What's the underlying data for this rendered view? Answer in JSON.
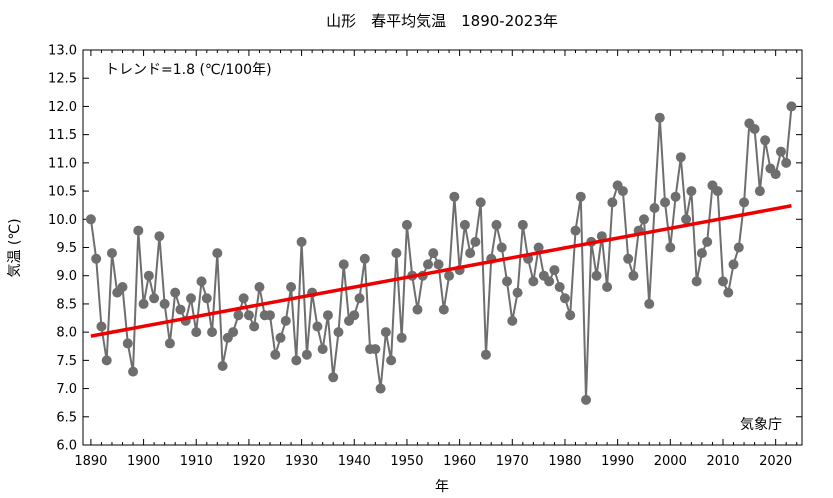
{
  "chart_data": {
    "type": "line",
    "title": "山形　春平均気温　1890-2023年",
    "xlabel": "年",
    "ylabel": "気温 (℃)",
    "trend_label": "トレンド=1.8 (℃/100年)",
    "source_label": "気象庁",
    "xlim": [
      1888.5,
      2025
    ],
    "ylim": [
      6.0,
      13.0
    ],
    "x_ticks": [
      1890,
      1900,
      1910,
      1920,
      1930,
      1940,
      1950,
      1960,
      1970,
      1980,
      1990,
      2000,
      2010,
      2020
    ],
    "y_ticks": [
      "6.0",
      "6.5",
      "7.0",
      "7.5",
      "8.0",
      "8.5",
      "9.0",
      "9.5",
      "10.0",
      "10.5",
      "11.0",
      "11.5",
      "12.0",
      "12.5",
      "13.0"
    ],
    "grid": false,
    "series": [
      {
        "color": "#6e6e6e",
        "x": [
          1890,
          1891,
          1892,
          1893,
          1894,
          1895,
          1896,
          1897,
          1898,
          1899,
          1900,
          1901,
          1902,
          1903,
          1904,
          1905,
          1906,
          1907,
          1908,
          1909,
          1910,
          1911,
          1912,
          1913,
          1914,
          1915,
          1916,
          1917,
          1918,
          1919,
          1920,
          1921,
          1922,
          1923,
          1924,
          1925,
          1926,
          1927,
          1928,
          1929,
          1930,
          1931,
          1932,
          1933,
          1934,
          1935,
          1936,
          1937,
          1938,
          1939,
          1940,
          1941,
          1942,
          1943,
          1944,
          1945,
          1946,
          1947,
          1948,
          1949,
          1950,
          1951,
          1952,
          1953,
          1954,
          1955,
          1956,
          1957,
          1958,
          1959,
          1960,
          1961,
          1962,
          1963,
          1964,
          1965,
          1966,
          1967,
          1968,
          1969,
          1970,
          1971,
          1972,
          1973,
          1974,
          1975,
          1976,
          1977,
          1978,
          1979,
          1980,
          1981,
          1982,
          1983,
          1984,
          1985,
          1986,
          1987,
          1988,
          1989,
          1990,
          1991,
          1992,
          1993,
          1994,
          1995,
          1996,
          1997,
          1998,
          1999,
          2000,
          2001,
          2002,
          2003,
          2004,
          2005,
          2006,
          2007,
          2008,
          2009,
          2010,
          2011,
          2012,
          2013,
          2014,
          2015,
          2016,
          2017,
          2018,
          2019,
          2020,
          2021,
          2022,
          2023
        ],
        "values": [
          10.0,
          9.3,
          8.1,
          7.5,
          9.4,
          8.7,
          8.8,
          7.8,
          7.3,
          9.8,
          8.5,
          9.0,
          8.6,
          9.7,
          8.5,
          7.8,
          8.7,
          8.4,
          8.2,
          8.6,
          8.0,
          8.9,
          8.6,
          8.0,
          9.4,
          7.4,
          7.9,
          8.0,
          8.3,
          8.6,
          8.3,
          8.1,
          8.8,
          8.3,
          8.3,
          7.6,
          7.9,
          8.2,
          8.8,
          7.5,
          9.6,
          7.6,
          8.7,
          8.1,
          7.7,
          8.3,
          7.2,
          8.0,
          9.2,
          8.2,
          8.3,
          8.6,
          9.3,
          7.7,
          7.7,
          7.0,
          8.0,
          7.5,
          9.4,
          7.9,
          9.9,
          9.0,
          8.4,
          9.0,
          9.2,
          9.4,
          9.2,
          8.4,
          9.0,
          10.4,
          9.1,
          9.9,
          9.4,
          9.6,
          10.3,
          7.6,
          9.3,
          9.9,
          9.5,
          8.9,
          8.2,
          8.7,
          9.9,
          9.3,
          8.9,
          9.5,
          9.0,
          8.9,
          9.1,
          8.8,
          8.6,
          8.3,
          9.8,
          10.4,
          6.8,
          9.6,
          9.0,
          9.7,
          8.8,
          10.3,
          10.6,
          10.5,
          9.3,
          9.0,
          9.8,
          10.0,
          8.5,
          10.2,
          11.8,
          10.3,
          9.5,
          10.4,
          11.1,
          10.0,
          10.5,
          8.9,
          9.4,
          9.6,
          10.6,
          10.5,
          8.9,
          8.7,
          9.2,
          9.5,
          10.3,
          11.7,
          11.6,
          10.5,
          11.4,
          10.9,
          10.8,
          11.2,
          11.0,
          12.0
        ]
      }
    ],
    "trend": {
      "color": "#ee0000",
      "x": [
        1890,
        2023
      ],
      "values": [
        7.93,
        10.24
      ]
    }
  }
}
